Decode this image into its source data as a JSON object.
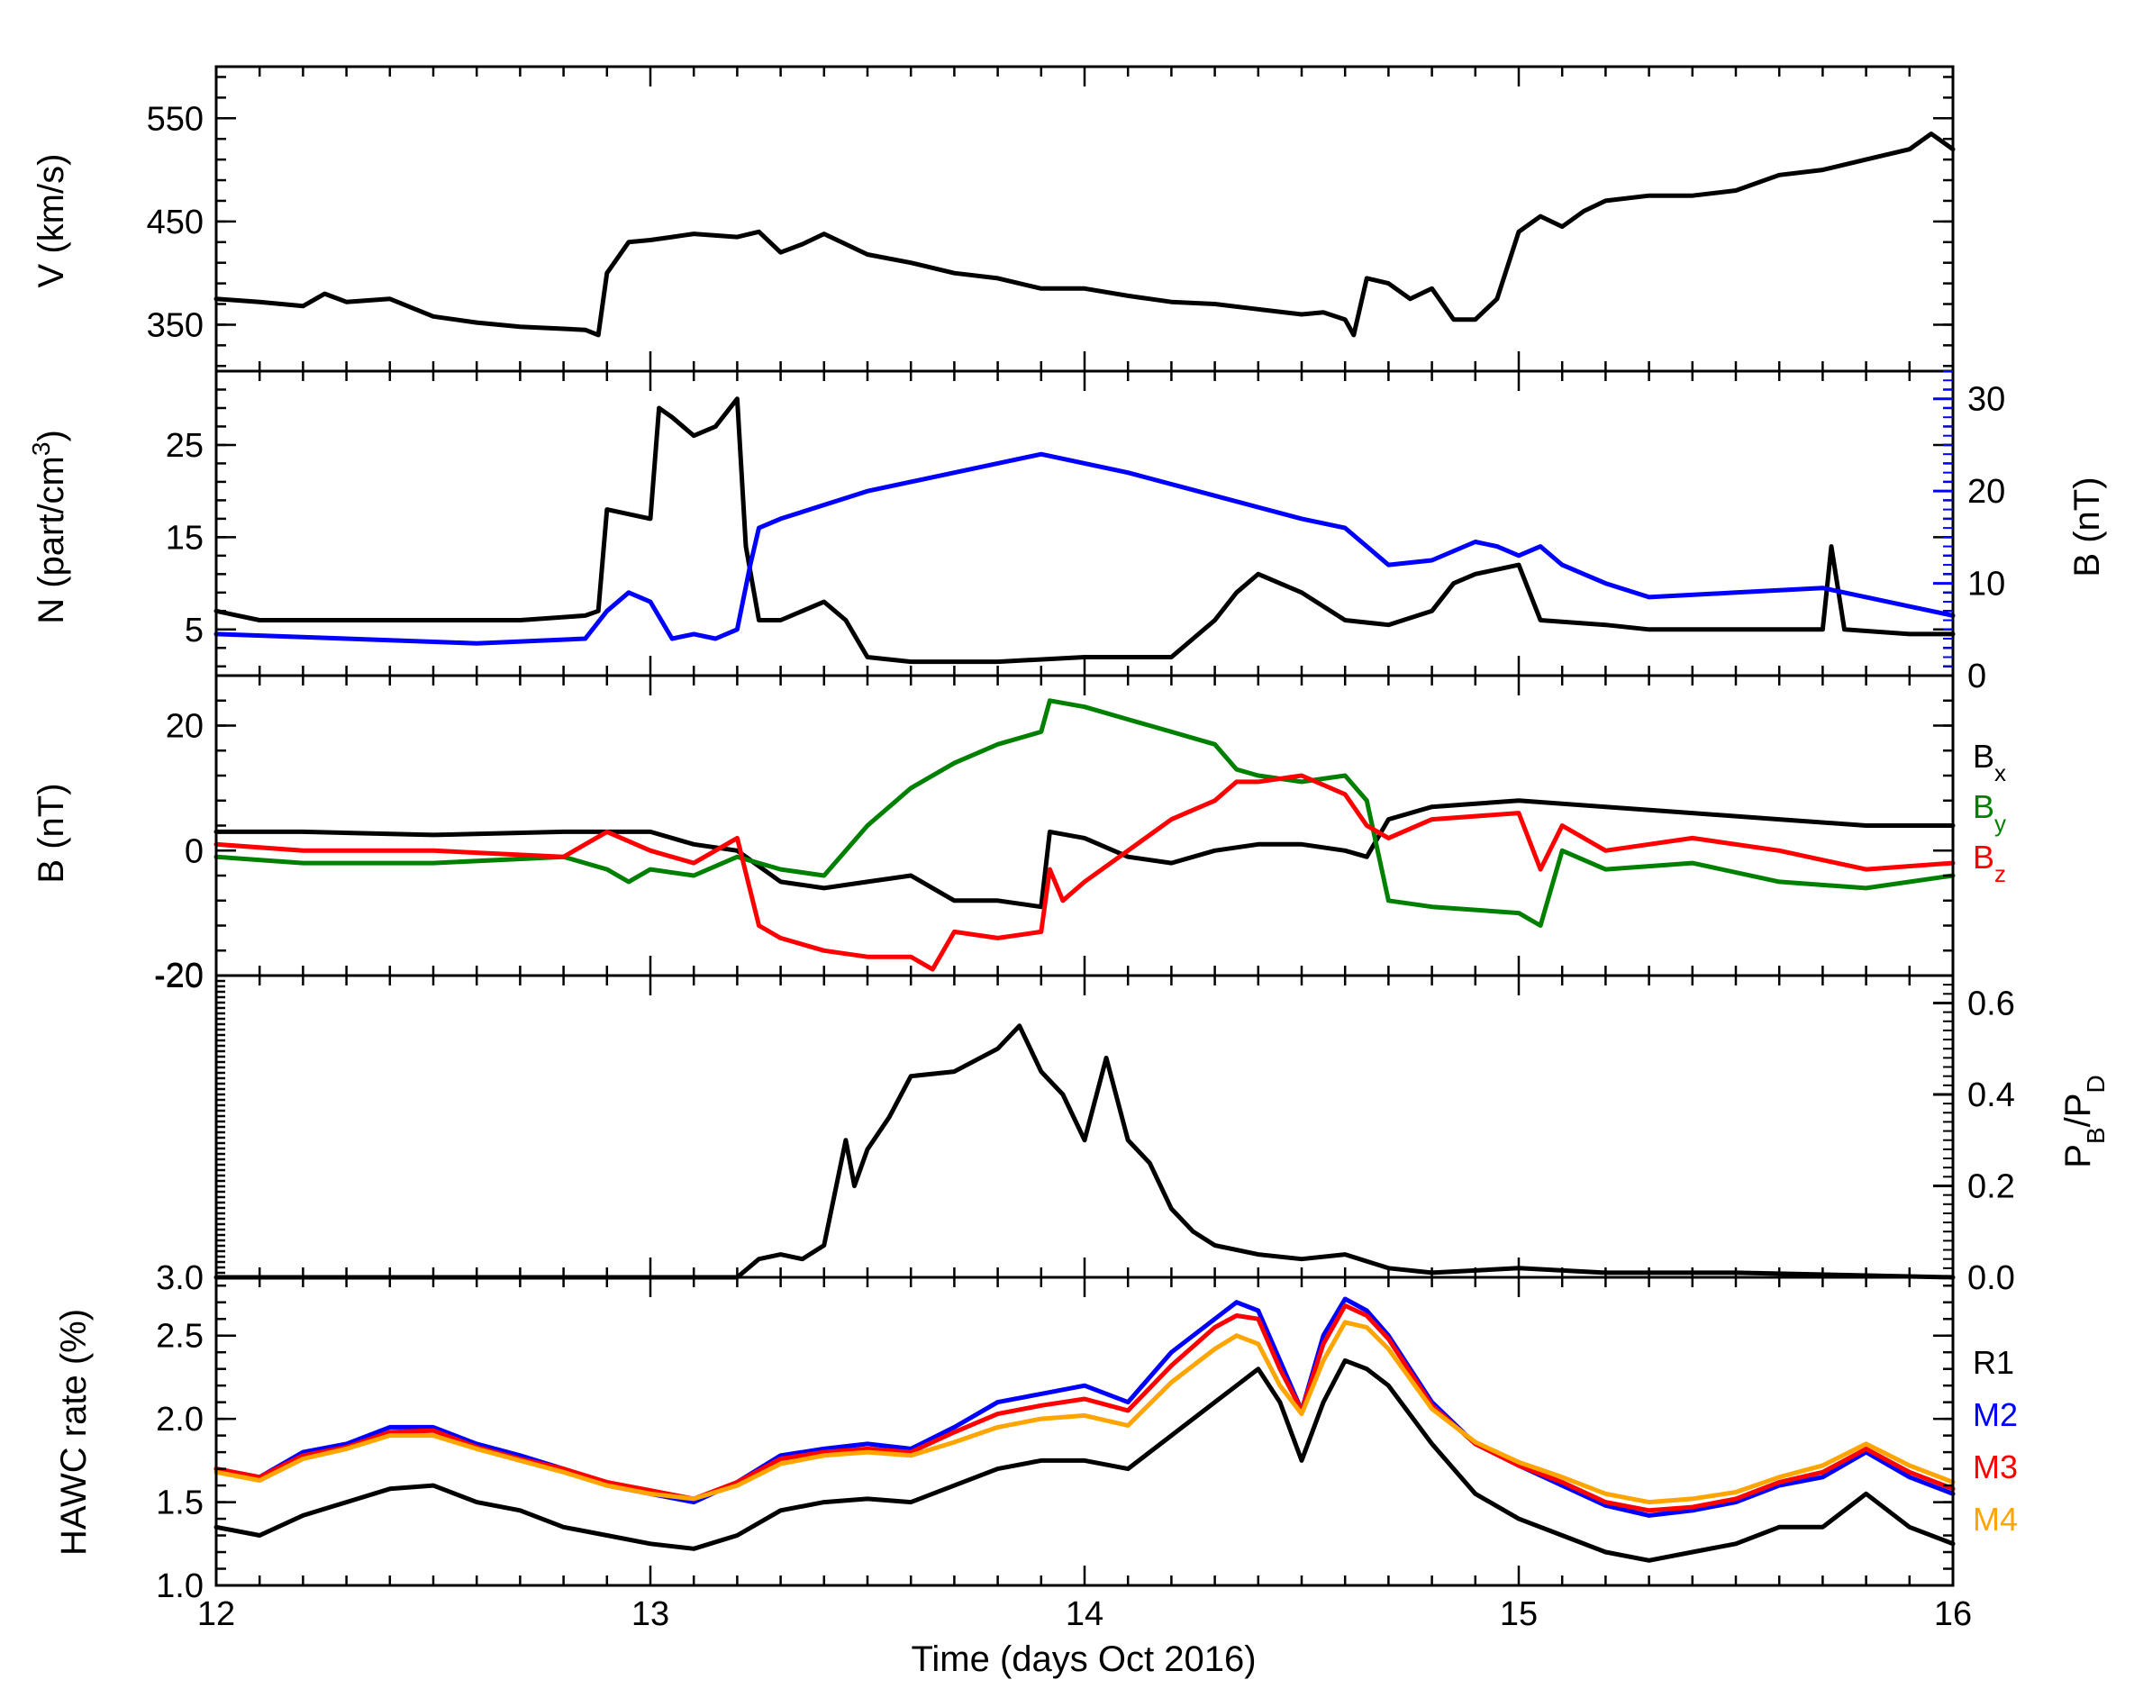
{
  "figure": {
    "xlabel": "Time (days Oct 2016)",
    "xlim": [
      12,
      16
    ],
    "xticks": [
      "12",
      "13",
      "14",
      "15",
      "16"
    ]
  },
  "chart_data": [
    {
      "type": "line",
      "ylabel": "V (km/s)",
      "ylim": [
        305,
        600
      ],
      "yticks": [
        "350",
        "450",
        "550"
      ],
      "series": [
        {
          "color": "#000000",
          "x": [
            12.0,
            12.1,
            12.2,
            12.25,
            12.3,
            12.4,
            12.5,
            12.6,
            12.7,
            12.8,
            12.85,
            12.88,
            12.9,
            12.95,
            13.0,
            13.05,
            13.1,
            13.2,
            13.25,
            13.3,
            13.35,
            13.4,
            13.5,
            13.6,
            13.7,
            13.8,
            13.9,
            14.0,
            14.1,
            14.2,
            14.3,
            14.4,
            14.5,
            14.55,
            14.6,
            14.62,
            14.65,
            14.7,
            14.75,
            14.8,
            14.85,
            14.9,
            14.95,
            15.0,
            15.05,
            15.1,
            15.15,
            15.2,
            15.3,
            15.4,
            15.5,
            15.6,
            15.7,
            15.8,
            15.9,
            15.95,
            16.0
          ],
          "values": [
            375,
            372,
            368,
            380,
            372,
            375,
            358,
            352,
            348,
            346,
            345,
            340,
            400,
            430,
            432,
            435,
            438,
            435,
            440,
            420,
            428,
            438,
            418,
            410,
            400,
            395,
            385,
            385,
            378,
            372,
            370,
            365,
            360,
            362,
            355,
            340,
            395,
            390,
            375,
            385,
            355,
            355,
            375,
            440,
            455,
            445,
            460,
            470,
            475,
            475,
            480,
            495,
            500,
            510,
            520,
            535,
            520
          ]
        }
      ]
    },
    {
      "type": "line",
      "ylabel": "N (part/cm³)",
      "ylim": [
        0,
        33
      ],
      "yticks": [
        "5",
        "15",
        "25"
      ],
      "y2label": "B (nT)",
      "y2lim": [
        0,
        33
      ],
      "y2ticks": [
        "0",
        "10",
        "20",
        "30"
      ],
      "series": [
        {
          "name": "N",
          "color": "#000000",
          "x": [
            12.0,
            12.1,
            12.3,
            12.5,
            12.7,
            12.85,
            12.88,
            12.9,
            13.0,
            13.02,
            13.05,
            13.1,
            13.15,
            13.2,
            13.22,
            13.25,
            13.3,
            13.4,
            13.45,
            13.5,
            13.6,
            13.8,
            14.0,
            14.1,
            14.2,
            14.25,
            14.3,
            14.35,
            14.4,
            14.45,
            14.5,
            14.6,
            14.7,
            14.8,
            14.85,
            14.9,
            15.0,
            15.05,
            15.2,
            15.3,
            15.5,
            15.7,
            15.72,
            15.75,
            15.9,
            16.0
          ],
          "values": [
            7,
            6,
            6,
            6,
            6,
            6.5,
            7,
            18,
            17,
            29,
            28,
            26,
            27,
            30,
            14,
            6,
            6,
            8,
            6,
            2,
            1.5,
            1.5,
            2,
            2,
            2,
            4,
            6,
            9,
            11,
            10,
            9,
            6,
            5.5,
            7,
            10,
            11,
            12,
            6,
            5.5,
            5,
            5,
            5,
            14,
            5,
            4.5,
            4.5
          ]
        },
        {
          "name": "B",
          "color": "#0000ff",
          "axis": "right",
          "x": [
            12.0,
            12.3,
            12.6,
            12.85,
            12.9,
            12.95,
            13.0,
            13.05,
            13.1,
            13.15,
            13.2,
            13.23,
            13.25,
            13.3,
            13.5,
            13.7,
            13.9,
            13.95,
            14.0,
            14.1,
            14.3,
            14.5,
            14.6,
            14.7,
            14.8,
            14.9,
            14.95,
            15.0,
            15.05,
            15.1,
            15.2,
            15.3,
            15.5,
            15.7,
            15.8,
            15.9,
            16.0
          ],
          "values": [
            4.5,
            4,
            3.5,
            4,
            7,
            9,
            8,
            4,
            4.5,
            4,
            5,
            12,
            16,
            17,
            20,
            22,
            24,
            23.5,
            23,
            22,
            19.5,
            17,
            16,
            12,
            12.5,
            14.5,
            14,
            13,
            14,
            12,
            10,
            8.5,
            9,
            9.5,
            8.5,
            7.5,
            6.5
          ]
        }
      ]
    },
    {
      "type": "line",
      "ylabel": "B (nT)",
      "ylim": [
        -20,
        28
      ],
      "yticks": [
        "-20",
        "0",
        "20"
      ],
      "series": [
        {
          "name": "Bx",
          "color": "#000000",
          "x": [
            12.0,
            12.2,
            12.5,
            12.8,
            12.9,
            13.0,
            13.1,
            13.2,
            13.3,
            13.4,
            13.5,
            13.6,
            13.65,
            13.7,
            13.8,
            13.9,
            13.92,
            14.0,
            14.1,
            14.2,
            14.3,
            14.4,
            14.5,
            14.6,
            14.65,
            14.7,
            14.8,
            15.0,
            15.2,
            15.4,
            15.6,
            15.8,
            16.0
          ],
          "values": [
            3,
            3,
            2.5,
            3,
            3,
            3,
            1,
            0,
            -5,
            -6,
            -5,
            -4,
            -6,
            -8,
            -8,
            -9,
            3,
            2,
            -1,
            -2,
            0,
            1,
            1,
            0,
            -1,
            5,
            7,
            8,
            7,
            6,
            5,
            4,
            4
          ]
        },
        {
          "name": "By",
          "color": "#008000",
          "x": [
            12.0,
            12.2,
            12.5,
            12.8,
            12.9,
            12.95,
            13.0,
            13.1,
            13.2,
            13.3,
            13.4,
            13.5,
            13.6,
            13.7,
            13.8,
            13.9,
            13.92,
            14.0,
            14.1,
            14.2,
            14.3,
            14.35,
            14.4,
            14.5,
            14.6,
            14.65,
            14.7,
            14.8,
            15.0,
            15.05,
            15.1,
            15.2,
            15.4,
            15.6,
            15.8,
            16.0
          ],
          "values": [
            -1,
            -2,
            -2,
            -1,
            -3,
            -5,
            -3,
            -4,
            -1,
            -3,
            -4,
            4,
            10,
            14,
            17,
            19,
            24,
            23,
            21,
            19,
            17,
            13,
            12,
            11,
            12,
            8,
            -8,
            -9,
            -10,
            -12,
            0,
            -3,
            -2,
            -5,
            -6,
            -4
          ]
        },
        {
          "name": "Bz",
          "color": "#ff0000",
          "x": [
            12.0,
            12.2,
            12.5,
            12.8,
            12.9,
            13.0,
            13.1,
            13.2,
            13.25,
            13.3,
            13.4,
            13.5,
            13.6,
            13.65,
            13.7,
            13.8,
            13.9,
            13.92,
            13.95,
            14.0,
            14.1,
            14.2,
            14.3,
            14.35,
            14.4,
            14.5,
            14.6,
            14.65,
            14.7,
            14.8,
            15.0,
            15.05,
            15.1,
            15.2,
            15.4,
            15.6,
            15.8,
            16.0
          ],
          "values": [
            1,
            0,
            0,
            -1,
            3,
            0,
            -2,
            2,
            -12,
            -14,
            -16,
            -17,
            -17,
            -19,
            -13,
            -14,
            -13,
            -3,
            -8,
            -5,
            0,
            5,
            8,
            11,
            11,
            12,
            9,
            4,
            2,
            5,
            6,
            -3,
            4,
            0,
            2,
            0,
            -3,
            -2
          ]
        }
      ]
    },
    {
      "type": "line",
      "y2label": "PB/PD",
      "y2lim": [
        0,
        0.66
      ],
      "y2ticks": [
        "0.0",
        "0.2",
        "0.4",
        "0.6"
      ],
      "yticks": [
        "-20",
        "3.0"
      ],
      "series": [
        {
          "color": "#000000",
          "x": [
            12.0,
            13.0,
            13.2,
            13.25,
            13.3,
            13.35,
            13.4,
            13.45,
            13.47,
            13.5,
            13.55,
            13.6,
            13.7,
            13.8,
            13.85,
            13.9,
            13.95,
            14.0,
            14.05,
            14.1,
            14.15,
            14.2,
            14.25,
            14.3,
            14.4,
            14.5,
            14.6,
            14.7,
            14.8,
            15.0,
            15.2,
            15.5,
            16.0
          ],
          "values": [
            0.0,
            0.0,
            0.0,
            0.04,
            0.05,
            0.04,
            0.07,
            0.3,
            0.2,
            0.28,
            0.35,
            0.44,
            0.45,
            0.5,
            0.55,
            0.45,
            0.4,
            0.3,
            0.48,
            0.3,
            0.25,
            0.15,
            0.1,
            0.07,
            0.05,
            0.04,
            0.05,
            0.02,
            0.01,
            0.02,
            0.01,
            0.01,
            0.0
          ]
        }
      ]
    },
    {
      "type": "line",
      "ylabel": "HAWC rate (%)",
      "ylim": [
        1.0,
        2.85
      ],
      "yticks": [
        "1.0",
        "1.5",
        "2.0",
        "2.5"
      ],
      "legend": [
        "R1",
        "M2",
        "M3",
        "M4"
      ],
      "series": [
        {
          "name": "R1",
          "color": "#000000",
          "x": [
            12.0,
            12.1,
            12.2,
            12.3,
            12.4,
            12.5,
            12.6,
            12.7,
            12.8,
            12.9,
            13.0,
            13.1,
            13.2,
            13.3,
            13.4,
            13.5,
            13.6,
            13.7,
            13.8,
            13.9,
            14.0,
            14.1,
            14.2,
            14.3,
            14.35,
            14.4,
            14.45,
            14.5,
            14.55,
            14.6,
            14.65,
            14.7,
            14.8,
            14.9,
            15.0,
            15.1,
            15.2,
            15.3,
            15.4,
            15.5,
            15.6,
            15.7,
            15.8,
            15.9,
            16.0
          ],
          "values": [
            1.35,
            1.3,
            1.42,
            1.5,
            1.58,
            1.6,
            1.5,
            1.45,
            1.35,
            1.3,
            1.25,
            1.22,
            1.3,
            1.45,
            1.5,
            1.52,
            1.5,
            1.6,
            1.7,
            1.75,
            1.75,
            1.7,
            1.9,
            2.1,
            2.2,
            2.3,
            2.1,
            1.75,
            2.1,
            2.35,
            2.3,
            2.2,
            1.85,
            1.55,
            1.4,
            1.3,
            1.2,
            1.15,
            1.2,
            1.25,
            1.35,
            1.35,
            1.55,
            1.35,
            1.25
          ]
        },
        {
          "name": "M2",
          "color": "#0000ff",
          "x": [
            12.0,
            12.1,
            12.2,
            12.3,
            12.4,
            12.5,
            12.6,
            12.7,
            12.8,
            12.9,
            13.0,
            13.1,
            13.2,
            13.3,
            13.4,
            13.5,
            13.6,
            13.7,
            13.8,
            13.9,
            14.0,
            14.1,
            14.2,
            14.3,
            14.35,
            14.4,
            14.45,
            14.5,
            14.55,
            14.6,
            14.65,
            14.7,
            14.8,
            14.9,
            15.0,
            15.1,
            15.2,
            15.3,
            15.4,
            15.5,
            15.6,
            15.7,
            15.8,
            15.9,
            16.0
          ],
          "values": [
            1.7,
            1.65,
            1.8,
            1.85,
            1.95,
            1.95,
            1.85,
            1.78,
            1.7,
            1.6,
            1.55,
            1.5,
            1.62,
            1.78,
            1.82,
            1.85,
            1.82,
            1.95,
            2.1,
            2.15,
            2.2,
            2.1,
            2.4,
            2.6,
            2.7,
            2.65,
            2.35,
            2.05,
            2.5,
            2.72,
            2.65,
            2.5,
            2.1,
            1.85,
            1.72,
            1.6,
            1.48,
            1.42,
            1.45,
            1.5,
            1.6,
            1.65,
            1.8,
            1.65,
            1.55
          ]
        },
        {
          "name": "M3",
          "color": "#ff0000",
          "x": [
            12.0,
            12.1,
            12.2,
            12.3,
            12.4,
            12.5,
            12.6,
            12.7,
            12.8,
            12.9,
            13.0,
            13.1,
            13.2,
            13.3,
            13.4,
            13.5,
            13.6,
            13.7,
            13.8,
            13.9,
            14.0,
            14.1,
            14.2,
            14.3,
            14.35,
            14.4,
            14.45,
            14.5,
            14.55,
            14.6,
            14.65,
            14.7,
            14.8,
            14.9,
            15.0,
            15.1,
            15.2,
            15.3,
            15.4,
            15.5,
            15.6,
            15.7,
            15.8,
            15.9,
            16.0
          ],
          "values": [
            1.7,
            1.65,
            1.78,
            1.83,
            1.92,
            1.93,
            1.83,
            1.76,
            1.7,
            1.62,
            1.57,
            1.52,
            1.62,
            1.76,
            1.8,
            1.82,
            1.8,
            1.92,
            2.03,
            2.08,
            2.12,
            2.05,
            2.32,
            2.55,
            2.62,
            2.6,
            2.3,
            2.05,
            2.45,
            2.68,
            2.62,
            2.48,
            2.08,
            1.85,
            1.72,
            1.62,
            1.5,
            1.45,
            1.47,
            1.52,
            1.62,
            1.68,
            1.82,
            1.68,
            1.58
          ]
        },
        {
          "name": "M4",
          "color": "#ffa500",
          "x": [
            12.0,
            12.1,
            12.2,
            12.3,
            12.4,
            12.5,
            12.6,
            12.7,
            12.8,
            12.9,
            13.0,
            13.1,
            13.2,
            13.3,
            13.4,
            13.5,
            13.6,
            13.7,
            13.8,
            13.9,
            14.0,
            14.1,
            14.2,
            14.3,
            14.35,
            14.4,
            14.45,
            14.5,
            14.55,
            14.6,
            14.65,
            14.7,
            14.8,
            14.9,
            15.0,
            15.1,
            15.2,
            15.3,
            15.4,
            15.5,
            15.6,
            15.7,
            15.8,
            15.9,
            16.0
          ],
          "values": [
            1.68,
            1.63,
            1.76,
            1.82,
            1.9,
            1.9,
            1.82,
            1.75,
            1.68,
            1.6,
            1.55,
            1.52,
            1.6,
            1.73,
            1.78,
            1.8,
            1.78,
            1.86,
            1.95,
            2.0,
            2.02,
            1.96,
            2.22,
            2.42,
            2.5,
            2.45,
            2.2,
            2.03,
            2.35,
            2.58,
            2.55,
            2.42,
            2.06,
            1.86,
            1.74,
            1.65,
            1.55,
            1.5,
            1.52,
            1.56,
            1.65,
            1.72,
            1.85,
            1.72,
            1.62
          ]
        }
      ]
    }
  ]
}
